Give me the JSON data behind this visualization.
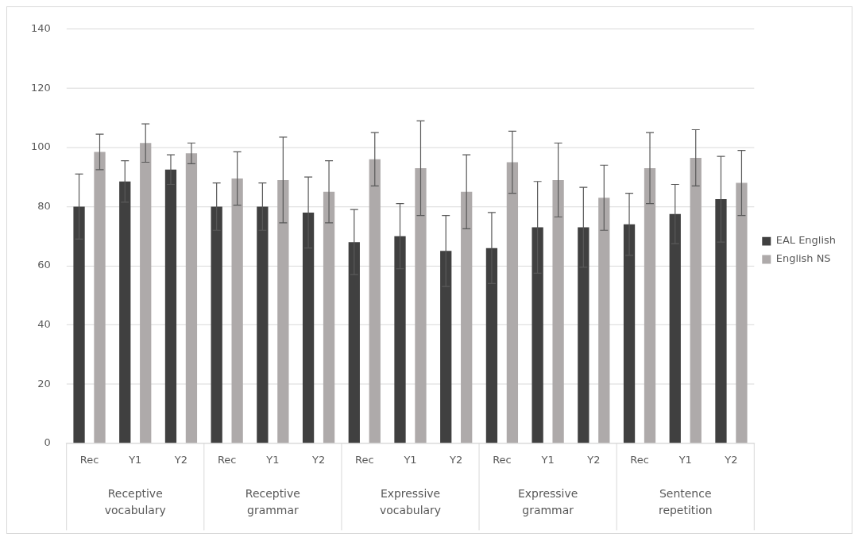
{
  "chart_data": {
    "type": "bar",
    "categories": [
      "Rec",
      "Y1",
      "Y2",
      "Rec",
      "Y1",
      "Y2",
      "Rec",
      "Y1",
      "Y2",
      "Rec",
      "Y1",
      "Y2",
      "Rec",
      "Y1",
      "Y2"
    ],
    "series": [
      {
        "name": "EAL English",
        "color": "#404040",
        "values": [
          80,
          88.5,
          92.5,
          80,
          80,
          78,
          68,
          70,
          65,
          66,
          73,
          73,
          74,
          77.5,
          82.5
        ],
        "errors": [
          11,
          7,
          5,
          8,
          8,
          12,
          11,
          11,
          12,
          12,
          15.5,
          13.5,
          10.5,
          10,
          14.5
        ]
      },
      {
        "name": "English NS",
        "color": "#aeaaaa",
        "values": [
          98.5,
          101.5,
          98,
          89.5,
          89,
          85,
          96,
          93,
          85,
          95,
          89,
          83,
          93,
          96.5,
          88
        ],
        "errors": [
          6,
          6.5,
          3.5,
          9,
          14.5,
          10.5,
          9,
          16,
          12.5,
          10.5,
          12.5,
          11,
          12,
          9.5,
          11
        ]
      }
    ],
    "annotations": [
      "Receptive vocabulary",
      "Receptive grammar",
      "Expressive vocabulary",
      "Expressive grammar",
      "Sentence repetition"
    ],
    "ylim": [
      0,
      140
    ],
    "yticks": [
      0,
      20,
      40,
      60,
      80,
      100,
      120,
      140
    ],
    "grid": "y",
    "legend": "right"
  }
}
